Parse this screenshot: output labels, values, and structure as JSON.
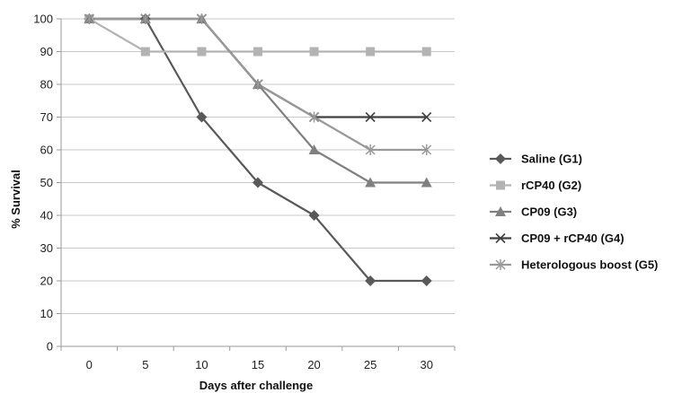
{
  "chart_data": {
    "type": "line",
    "xlabel": "Days after challenge",
    "ylabel": "% Survival",
    "x": [
      0,
      5,
      10,
      15,
      20,
      25,
      30
    ],
    "ylim": [
      0,
      100
    ],
    "yticks": [
      0,
      10,
      20,
      30,
      40,
      50,
      60,
      70,
      80,
      90,
      100
    ],
    "grid": "horizontal",
    "legend_position": "right",
    "series": [
      {
        "name": "Saline (G1)",
        "values": [
          100,
          100,
          70,
          50,
          40,
          20,
          20
        ],
        "color": "#595959",
        "marker": "diamond"
      },
      {
        "name": "rCP40 (G2)",
        "values": [
          100,
          90,
          90,
          90,
          90,
          90,
          90
        ],
        "color": "#b3b3b3",
        "marker": "square"
      },
      {
        "name": "CP09 (G3)",
        "values": [
          100,
          100,
          100,
          80,
          60,
          50,
          50
        ],
        "color": "#808080",
        "marker": "triangle"
      },
      {
        "name": "CP09 + rCP40 (G4)",
        "values": [
          100,
          100,
          100,
          80,
          70,
          70,
          70
        ],
        "color": "#404040",
        "marker": "x"
      },
      {
        "name": "Heterologous boost (G5)",
        "values": [
          100,
          100,
          100,
          80,
          70,
          60,
          60
        ],
        "color": "#999999",
        "marker": "star"
      }
    ]
  }
}
